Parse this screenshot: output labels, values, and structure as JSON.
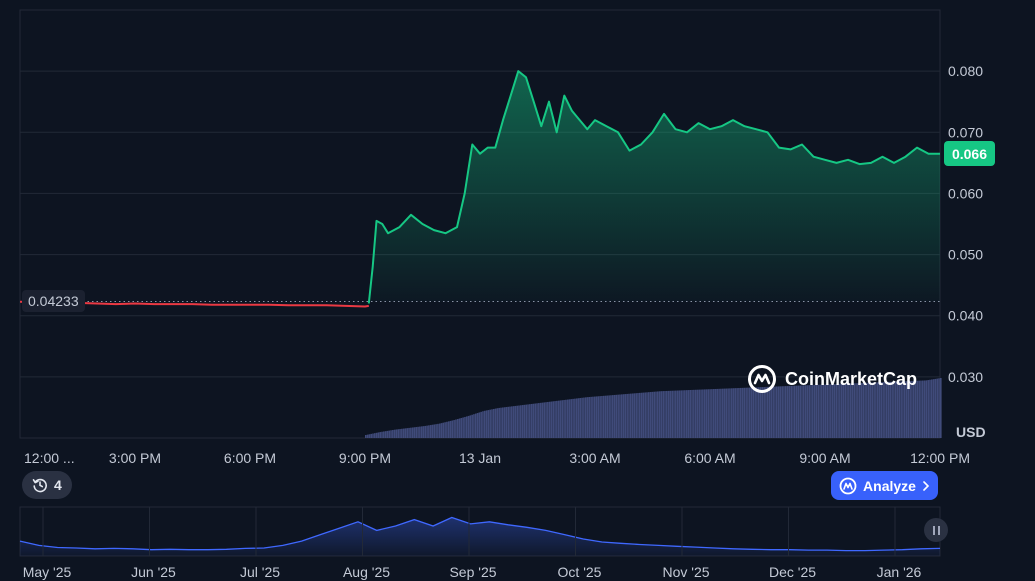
{
  "chart_data": {
    "type": "area",
    "currency_label": "USD",
    "ylim": [
      0.02,
      0.09
    ],
    "y_ticks": [
      "0.030",
      "0.040",
      "0.050",
      "0.060",
      "0.070",
      "0.080"
    ],
    "x_ticks": [
      "12:00 ...",
      "3:00 PM",
      "6:00 PM",
      "9:00 PM",
      "13 Jan",
      "3:00 AM",
      "6:00 AM",
      "9:00 AM",
      "12:00 PM"
    ],
    "reference_price": "0.04233",
    "current_price": "0.066",
    "series": [
      {
        "x_hours": [
          0,
          0.5,
          1,
          1.5,
          2,
          2.5,
          3,
          3.5,
          4,
          4.5,
          5,
          5.5,
          6,
          6.5,
          7,
          7.5,
          8,
          8.5,
          9,
          9.1
        ],
        "values": [
          0.0423,
          0.0422,
          0.042,
          0.0421,
          0.042,
          0.0419,
          0.042,
          0.0419,
          0.0419,
          0.0419,
          0.0418,
          0.0418,
          0.0418,
          0.0418,
          0.0417,
          0.0417,
          0.0417,
          0.0416,
          0.0415,
          0.0416
        ]
      },
      {
        "x_hours": [
          9.1,
          9.2,
          9.3,
          9.45,
          9.6,
          9.9,
          10.2,
          10.5,
          10.8,
          11.1,
          11.4,
          11.6,
          11.8,
          12.0,
          12.2,
          12.4,
          12.6,
          12.8,
          13.0,
          13.2,
          13.4,
          13.6,
          13.8,
          14.0,
          14.2,
          14.4,
          14.6,
          14.8,
          15.0,
          15.3,
          15.6,
          15.9,
          16.2,
          16.5,
          16.8,
          17.1,
          17.4,
          17.7,
          18.0,
          18.3,
          18.6,
          18.9,
          19.2,
          19.5,
          19.8,
          20.1,
          20.4,
          20.7,
          21.0,
          21.3,
          21.6,
          21.9,
          22.2,
          22.5,
          22.8,
          23.1,
          23.4,
          23.7,
          24.0
        ],
        "values": [
          0.042,
          0.048,
          0.0555,
          0.055,
          0.0535,
          0.0545,
          0.0565,
          0.055,
          0.054,
          0.0535,
          0.0545,
          0.06,
          0.068,
          0.0665,
          0.0675,
          0.0675,
          0.072,
          0.076,
          0.08,
          0.079,
          0.075,
          0.071,
          0.075,
          0.07,
          0.076,
          0.0735,
          0.072,
          0.0705,
          0.072,
          0.071,
          0.07,
          0.067,
          0.068,
          0.07,
          0.073,
          0.0705,
          0.07,
          0.0715,
          0.0705,
          0.071,
          0.072,
          0.071,
          0.0705,
          0.07,
          0.0675,
          0.0672,
          0.068,
          0.066,
          0.0655,
          0.065,
          0.0655,
          0.0648,
          0.065,
          0.066,
          0.065,
          0.066,
          0.0675,
          0.0665,
          0.0665
        ]
      }
    ],
    "volume": {
      "start_hour": 9.0,
      "end_hour": 24.0,
      "relative_values": [
        0.05,
        0.1,
        0.14,
        0.17,
        0.2,
        0.24,
        0.3,
        0.37,
        0.45,
        0.5,
        0.53,
        0.56,
        0.59,
        0.62,
        0.65,
        0.68,
        0.7,
        0.72,
        0.74,
        0.76,
        0.78,
        0.79,
        0.8,
        0.81,
        0.82,
        0.83,
        0.84,
        0.85,
        0.86,
        0.87,
        0.88,
        0.89,
        0.9,
        0.91,
        0.92,
        0.93,
        0.94,
        0.95,
        0.96,
        1.0
      ]
    },
    "navigator": {
      "labels": [
        "May '25",
        "Jun '25",
        "Jul '25",
        "Aug '25",
        "Sep '25",
        "Oct '25",
        "Nov '25",
        "Dec '25",
        "Jan '26"
      ],
      "relative_values": [
        0.3,
        0.2,
        0.15,
        0.14,
        0.12,
        0.13,
        0.12,
        0.1,
        0.11,
        0.1,
        0.1,
        0.11,
        0.13,
        0.14,
        0.2,
        0.3,
        0.45,
        0.6,
        0.75,
        0.55,
        0.65,
        0.8,
        0.65,
        0.85,
        0.7,
        0.75,
        0.68,
        0.62,
        0.55,
        0.45,
        0.35,
        0.28,
        0.25,
        0.22,
        0.2,
        0.18,
        0.16,
        0.14,
        0.12,
        0.11,
        0.1,
        0.1,
        0.09,
        0.09,
        0.08,
        0.08,
        0.09,
        0.1,
        0.12,
        0.13
      ]
    }
  },
  "history_pill": {
    "icon": "history-icon",
    "count": "4"
  },
  "analyze_button": {
    "label": "Analyze",
    "icon": "ai-sparkle-icon"
  },
  "watermark": {
    "text": "CoinMarketCap",
    "icon": "coinmarketcap-logo-icon"
  },
  "colors": {
    "background": "#0d1421",
    "grid": "#222937",
    "line_up": "#16c784",
    "line_down": "#ea3943",
    "volume": "#404b7a",
    "navigator_line": "#3f68ff",
    "accent": "#3861fb"
  }
}
